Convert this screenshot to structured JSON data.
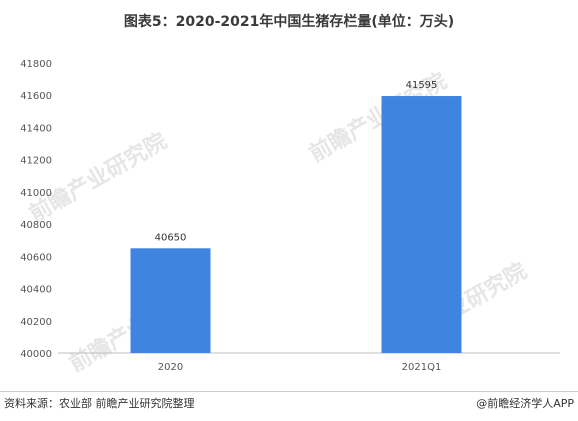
{
  "title": "图表5：2020-2021年中国生猪存栏量(单位：万头)",
  "watermark": "前瞻产业研究院",
  "chart_data": {
    "type": "bar",
    "title": "图表5：2020-2021年中国生猪存栏量(单位：万头)",
    "categories": [
      "2020",
      "2021Q1"
    ],
    "values": [
      40650,
      41595
    ],
    "ylim": [
      40000,
      41800
    ],
    "yticks": [
      "40000",
      "40200",
      "40400",
      "40600",
      "40800",
      "41000",
      "41200",
      "41400",
      "41600",
      "41800"
    ],
    "bar_color": "#3f85e0",
    "grid": false,
    "legend": "none"
  },
  "footer": {
    "source": "资料来源：农业部 前瞻产业研究院整理",
    "brand": "@前瞻经济学人APP"
  }
}
